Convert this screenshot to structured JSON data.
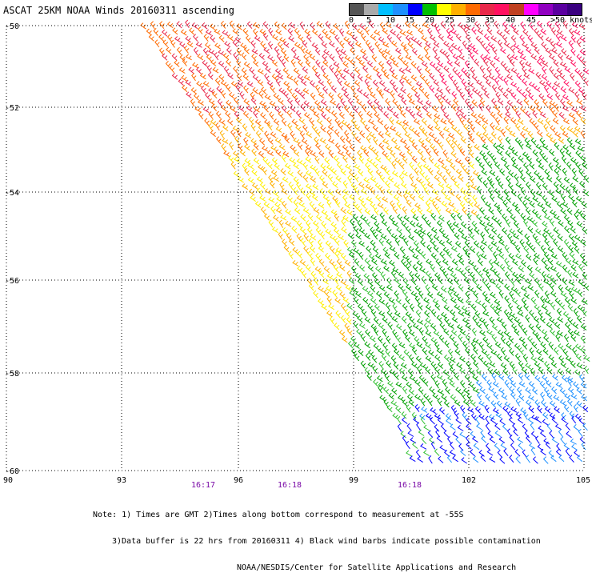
{
  "title": "ASCAT 25KM NOAA Winds 20160311 ascending",
  "colorbar": {
    "swatches": [
      "#555555",
      "#aaaaaa",
      "#00bfff",
      "#1e90ff",
      "#0000ff",
      "#00c000",
      "#ffff00",
      "#ffb000",
      "#ff6a00",
      "#e8284a",
      "#ff1060",
      "#c04020",
      "#ff00ff",
      "#9000c0",
      "#5a00a0",
      "#3a0080"
    ],
    "labels": [
      "0",
      "5",
      "10",
      "15",
      "20",
      "25",
      "30",
      "35",
      "40",
      "45",
      ">50 knots"
    ]
  },
  "lat_labels": [
    "-50",
    "-52",
    "-54",
    "-56",
    "-58",
    "-60"
  ],
  "lon_labels": [
    "90",
    "93",
    "96",
    "99",
    "102",
    "105"
  ],
  "time_labels": [
    "16:17",
    "16:18",
    "16:18"
  ],
  "notes": [
    "Note: 1) Times are GMT 2)Times along bottom correspond to measurement at -55S",
    "3)Data buffer is 22 hrs from 20160311 4) Black wind barbs indicate possible contamination",
    "NOAA/NESDIS/Center for Satellite Applications and Research"
  ],
  "wind_speed_colors": {
    "0-5": "#555555",
    "5-10": "#aaaaaa",
    "10-15": "#00bfff",
    "15-20": "#0000ff",
    "20-25": "#00c000",
    "25-30": "#ffff00",
    "30-35": "#ffb000",
    "35-40": "#ff6a00",
    "40-45": "#e8284a",
    "45-50": "#ff1060"
  }
}
